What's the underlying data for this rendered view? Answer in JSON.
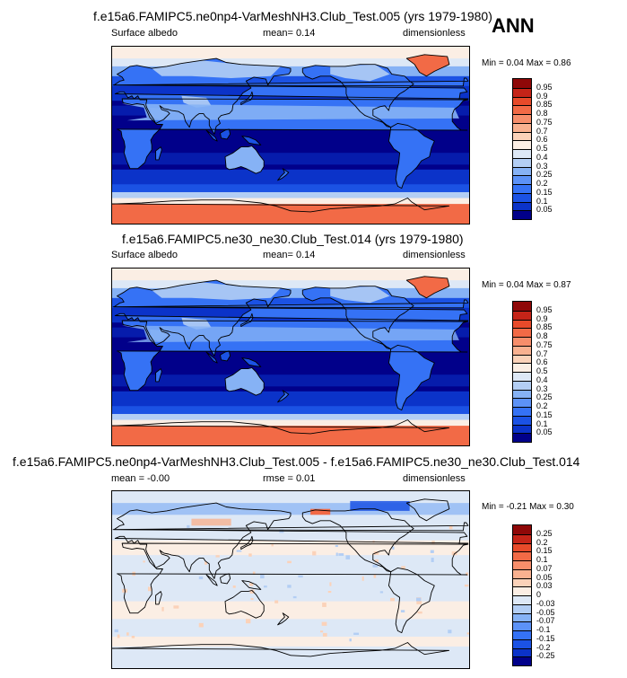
{
  "season": "ANN",
  "palette_main": [
    "#01008a",
    "#0b33c9",
    "#1b52e4",
    "#3572f5",
    "#5c92f7",
    "#86b2f5",
    "#b3cef4",
    "#dde8f6",
    "#fbeee4",
    "#fbd2b9",
    "#f9b190",
    "#f78e6b",
    "#f26a46",
    "#e74a2a",
    "#c52418",
    "#8f0808"
  ],
  "palette_diff": [
    "#01008a",
    "#0b33c9",
    "#1b52e4",
    "#3572f5",
    "#5c92f7",
    "#86b2f5",
    "#b3cef4",
    "#dde8f6",
    "#fbeee4",
    "#fbd2b9",
    "#f9b190",
    "#f78e6b",
    "#f26a46",
    "#e74a2a",
    "#c52418",
    "#8f0808"
  ],
  "coast_color": "#000000",
  "panels": [
    {
      "title": "f.e15a6.FAMIPC5.ne0np4-VarMeshNH3.Club_Test.005 (yrs 1979-1980)",
      "left_label": "Surface albedo",
      "center_label": "mean=  0.14",
      "right_label": "dimensionless",
      "min_label": "Min =",
      "min_value": "0.04",
      "max_label": "Max =",
      "max_value": "0.86",
      "colorbar_levels": [
        "0.95",
        "0.9",
        "0.85",
        "0.8",
        "0.75",
        "0.7",
        "0.6",
        "0.5",
        "0.4",
        "0.3",
        "0.25",
        "0.2",
        "0.15",
        "0.1",
        "0.05"
      ]
    },
    {
      "title": "f.e15a6.FAMIPC5.ne30_ne30.Club_Test.014 (yrs 1979-1980)",
      "left_label": "Surface albedo",
      "center_label": "mean=  0.14",
      "right_label": "dimensionless",
      "min_label": "Min =",
      "min_value": "0.04",
      "max_label": "Max =",
      "max_value": "0.87",
      "colorbar_levels": [
        "0.95",
        "0.9",
        "0.85",
        "0.8",
        "0.75",
        "0.7",
        "0.6",
        "0.5",
        "0.4",
        "0.3",
        "0.25",
        "0.2",
        "0.15",
        "0.1",
        "0.05"
      ]
    },
    {
      "title": "f.e15a6.FAMIPC5.ne0np4-VarMeshNH3.Club_Test.005 - f.e15a6.FAMIPC5.ne30_ne30.Club_Test.014",
      "left_label": "mean = -0.00",
      "center_label": "rmse =  0.01",
      "right_label": "dimensionless",
      "min_label": "Min =",
      "min_value": "-0.21",
      "max_label": "Max =",
      "max_value": "0.30",
      "colorbar_levels": [
        "0.25",
        "0.2",
        "0.15",
        "0.1",
        "0.07",
        "0.05",
        "0.03",
        "0",
        "-0.03",
        "-0.05",
        "-0.07",
        "-0.1",
        "-0.15",
        "-0.2",
        "-0.25"
      ]
    }
  ],
  "chart_data": [
    {
      "type": "heatmap",
      "title": "f.e15a6.FAMIPC5.ne0np4-VarMeshNH3.Club_Test.005 (yrs 1979-1980)",
      "variable": "Surface albedo",
      "units": "dimensionless",
      "mean": 0.14,
      "min": 0.04,
      "max": 0.86,
      "levels": [
        0.05,
        0.1,
        0.15,
        0.2,
        0.25,
        0.3,
        0.4,
        0.5,
        0.6,
        0.7,
        0.75,
        0.8,
        0.85,
        0.9,
        0.95
      ]
    },
    {
      "type": "heatmap",
      "title": "f.e15a6.FAMIPC5.ne30_ne30.Club_Test.014 (yrs 1979-1980)",
      "variable": "Surface albedo",
      "units": "dimensionless",
      "mean": 0.14,
      "min": 0.04,
      "max": 0.87,
      "levels": [
        0.05,
        0.1,
        0.15,
        0.2,
        0.25,
        0.3,
        0.4,
        0.5,
        0.6,
        0.7,
        0.75,
        0.8,
        0.85,
        0.9,
        0.95
      ]
    },
    {
      "type": "heatmap",
      "title": "f.e15a6.FAMIPC5.ne0np4-VarMeshNH3.Club_Test.005 - f.e15a6.FAMIPC5.ne30_ne30.Club_Test.014",
      "units": "dimensionless",
      "mean": -0.0,
      "rmse": 0.01,
      "min": -0.21,
      "max": 0.3,
      "levels": [
        -0.25,
        -0.2,
        -0.15,
        -0.1,
        -0.07,
        -0.05,
        -0.03,
        0,
        0.03,
        0.05,
        0.07,
        0.1,
        0.15,
        0.2,
        0.25
      ]
    }
  ]
}
